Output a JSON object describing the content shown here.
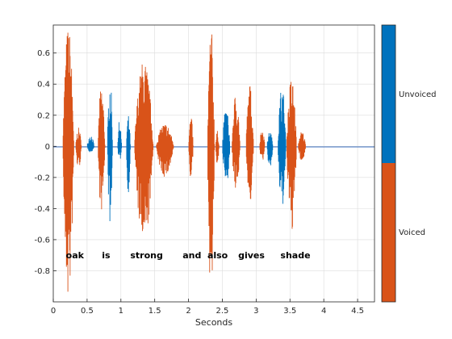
{
  "chart_data": {
    "type": "line",
    "title": "",
    "xlabel": "Seconds",
    "ylabel": "",
    "xlim": [
      0,
      4.75
    ],
    "ylim": [
      -1,
      0.78
    ],
    "grid": true,
    "xticks": [
      0,
      0.5,
      1,
      1.5,
      2,
      2.5,
      3,
      3.5,
      4,
      4.5
    ],
    "xtick_labels": [
      "0",
      "0.5",
      "1",
      "1.5",
      "2",
      "2.5",
      "3",
      "3.5",
      "4",
      "4.5"
    ],
    "yticks": [
      -0.8,
      -0.6,
      -0.4,
      -0.2,
      0,
      0.2,
      0.4,
      0.6
    ],
    "ytick_labels": [
      "-0.8",
      "-0.6",
      "-0.4",
      "-0.2",
      "0",
      "0.2",
      "0.4",
      "0.6"
    ],
    "colors": {
      "voiced": "#d95319",
      "unvoiced": "#0072bd"
    },
    "segments": [
      {
        "class": "voiced",
        "start": 0.14,
        "end": 0.33,
        "max": 0.78,
        "min": -1.0
      },
      {
        "class": "voiced",
        "start": 0.33,
        "end": 0.43,
        "max": 0.12,
        "min": -0.15
      },
      {
        "class": "unvoiced",
        "start": 0.5,
        "end": 0.62,
        "max": 0.08,
        "min": -0.04
      },
      {
        "class": "voiced",
        "start": 0.66,
        "end": 0.78,
        "max": 0.4,
        "min": -0.42
      },
      {
        "class": "unvoiced",
        "start": 0.8,
        "end": 0.89,
        "max": 0.45,
        "min": -0.5
      },
      {
        "class": "unvoiced",
        "start": 0.95,
        "end": 1.02,
        "max": 0.17,
        "min": -0.1
      },
      {
        "class": "unvoiced",
        "start": 1.08,
        "end": 1.15,
        "max": 0.2,
        "min": -0.3
      },
      {
        "class": "voiced",
        "start": 1.2,
        "end": 1.52,
        "max": 0.56,
        "min": -0.65
      },
      {
        "class": "voiced",
        "start": 1.52,
        "end": 1.82,
        "max": 0.15,
        "min": -0.2
      },
      {
        "class": "voiced",
        "start": 2.0,
        "end": 2.08,
        "max": 0.2,
        "min": -0.22
      },
      {
        "class": "voiced",
        "start": 2.28,
        "end": 2.4,
        "max": 0.78,
        "min": -0.95
      },
      {
        "class": "voiced",
        "start": 2.4,
        "end": 2.46,
        "max": 0.1,
        "min": -0.12
      },
      {
        "class": "unvoiced",
        "start": 2.5,
        "end": 2.63,
        "max": 0.25,
        "min": -0.25
      },
      {
        "class": "voiced",
        "start": 2.64,
        "end": 2.78,
        "max": 0.35,
        "min": -0.3
      },
      {
        "class": "voiced",
        "start": 2.85,
        "end": 2.98,
        "max": 0.4,
        "min": -0.38
      },
      {
        "class": "voiced",
        "start": 3.05,
        "end": 3.14,
        "max": 0.12,
        "min": -0.1
      },
      {
        "class": "unvoiced",
        "start": 3.16,
        "end": 3.26,
        "max": 0.1,
        "min": -0.15
      },
      {
        "class": "unvoiced",
        "start": 3.32,
        "end": 3.46,
        "max": 0.4,
        "min": -0.4
      },
      {
        "class": "voiced",
        "start": 3.45,
        "end": 3.62,
        "max": 0.45,
        "min": -0.55
      },
      {
        "class": "voiced",
        "start": 3.62,
        "end": 3.75,
        "max": 0.1,
        "min": -0.1
      }
    ],
    "words": [
      {
        "text": "oak",
        "x": 0.32
      },
      {
        "text": "is",
        "x": 0.78
      },
      {
        "text": "strong",
        "x": 1.38
      },
      {
        "text": "and",
        "x": 2.05
      },
      {
        "text": "also",
        "x": 2.43
      },
      {
        "text": "gives",
        "x": 2.93
      },
      {
        "text": "shade",
        "x": 3.58
      }
    ],
    "words_y": -0.7,
    "colorbar": {
      "labels": [
        "Unvoiced",
        "Voiced"
      ],
      "colors": [
        "#0072bd",
        "#d95319"
      ]
    }
  }
}
